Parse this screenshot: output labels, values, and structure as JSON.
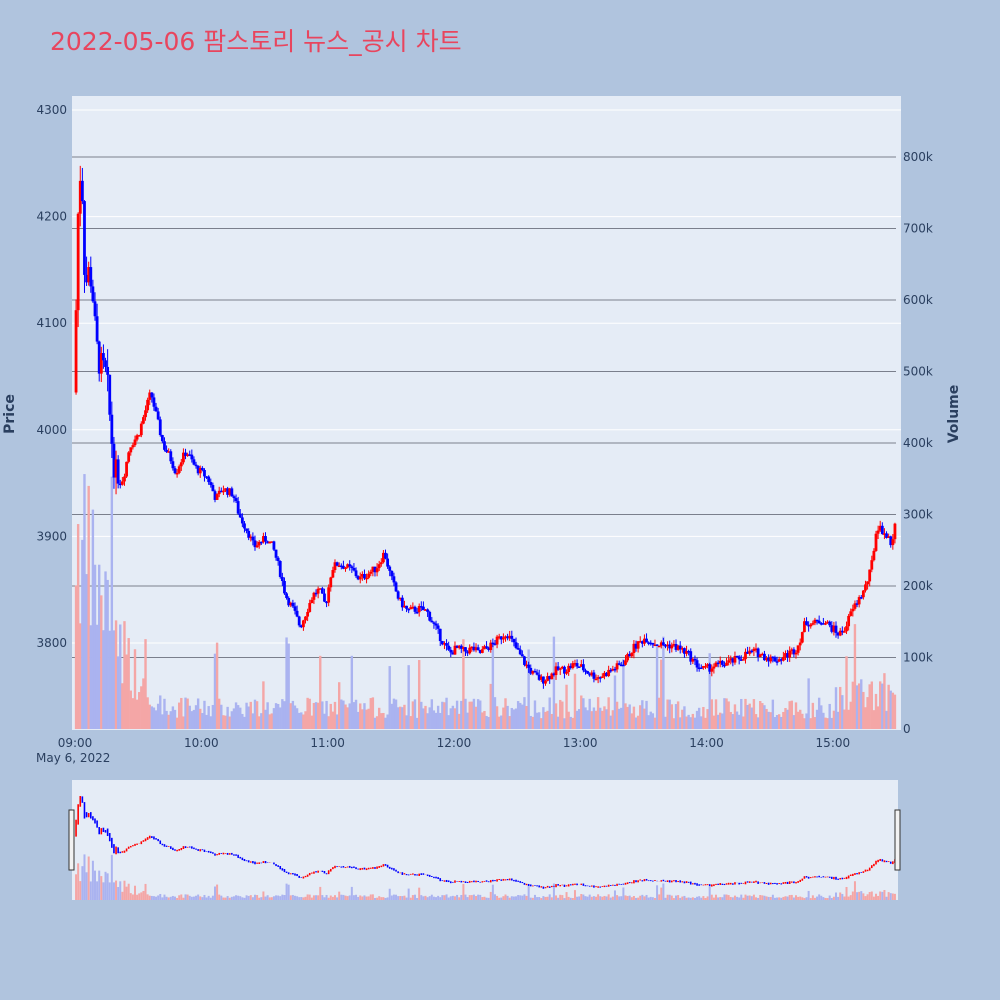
{
  "title": "2022-05-06 팜스토리 뉴스_공시 차트",
  "colors": {
    "page_bg": "#b0c4de",
    "plot_bg": "#e5ecf6",
    "up": "#ff0000",
    "down": "#0000ff",
    "volume_up": "#f4a6a6",
    "volume_down": "#aab3f0",
    "title": "#e8455e",
    "tick": "#2a3f5f",
    "volume_grid": "#7a7f8c"
  },
  "chart_data": {
    "type": "candlestick",
    "title": "2022-05-06 팜스토리 뉴스_공시 차트",
    "ylabel": "Price",
    "y2label": "Volume",
    "ylim": [
      3720,
      4305
    ],
    "y2lim": [
      0,
      860000
    ],
    "price_ticks": [
      "3800",
      "3900",
      "4000",
      "4100",
      "4200",
      "4300"
    ],
    "volume_ticks": [
      "0",
      "100k",
      "200k",
      "300k",
      "400k",
      "500k",
      "600k",
      "700k",
      "800k"
    ],
    "time_ticks": [
      "09:00",
      "10:00",
      "11:00",
      "12:00",
      "13:00",
      "14:00",
      "15:00"
    ],
    "date_label": "May 6, 2022",
    "x_range": [
      "09:00",
      "15:30"
    ],
    "price_path": [
      [
        "09:00",
        4035
      ],
      [
        "09:01",
        4190
      ],
      [
        "09:02",
        4215
      ],
      [
        "09:03",
        4265
      ],
      [
        "09:04",
        4180
      ],
      [
        "09:05",
        4130
      ],
      [
        "09:06",
        4150
      ],
      [
        "09:08",
        4140
      ],
      [
        "09:10",
        4080
      ],
      [
        "09:12",
        4060
      ],
      [
        "09:15",
        4050
      ],
      [
        "09:17",
        4000
      ],
      [
        "09:19",
        3960
      ],
      [
        "09:21",
        3950
      ],
      [
        "09:23",
        3955
      ],
      [
        "09:26",
        3985
      ],
      [
        "09:28",
        3990
      ],
      [
        "09:30",
        3995
      ],
      [
        "09:33",
        4015
      ],
      [
        "09:36",
        4035
      ],
      [
        "09:39",
        4010
      ],
      [
        "09:42",
        3985
      ],
      [
        "09:45",
        3975
      ],
      [
        "09:48",
        3960
      ],
      [
        "09:50",
        3970
      ],
      [
        "09:53",
        3980
      ],
      [
        "09:57",
        3965
      ],
      [
        "10:00",
        3960
      ],
      [
        "10:03",
        3955
      ],
      [
        "10:07",
        3935
      ],
      [
        "10:10",
        3945
      ],
      [
        "10:15",
        3940
      ],
      [
        "10:18",
        3920
      ],
      [
        "10:22",
        3905
      ],
      [
        "10:25",
        3890
      ],
      [
        "10:28",
        3895
      ],
      [
        "10:31",
        3898
      ],
      [
        "10:34",
        3890
      ],
      [
        "10:37",
        3870
      ],
      [
        "10:40",
        3845
      ],
      [
        "10:44",
        3830
      ],
      [
        "10:47",
        3815
      ],
      [
        "10:50",
        3830
      ],
      [
        "10:53",
        3845
      ],
      [
        "10:56",
        3850
      ],
      [
        "10:59",
        3835
      ],
      [
        "11:02",
        3870
      ],
      [
        "11:05",
        3875
      ],
      [
        "11:08",
        3872
      ],
      [
        "11:12",
        3868
      ],
      [
        "11:15",
        3860
      ],
      [
        "11:19",
        3865
      ],
      [
        "11:23",
        3870
      ],
      [
        "11:27",
        3885
      ],
      [
        "11:30",
        3862
      ],
      [
        "11:34",
        3840
      ],
      [
        "11:38",
        3830
      ],
      [
        "11:43",
        3832
      ],
      [
        "11:47",
        3830
      ],
      [
        "11:51",
        3815
      ],
      [
        "11:55",
        3800
      ],
      [
        "11:58",
        3790
      ],
      [
        "12:01",
        3795
      ],
      [
        "12:05",
        3792
      ],
      [
        "12:09",
        3795
      ],
      [
        "12:12",
        3790
      ],
      [
        "12:15",
        3795
      ],
      [
        "12:18",
        3798
      ],
      [
        "12:22",
        3805
      ],
      [
        "12:25",
        3810
      ],
      [
        "12:28",
        3800
      ],
      [
        "12:31",
        3790
      ],
      [
        "12:34",
        3780
      ],
      [
        "12:38",
        3770
      ],
      [
        "12:42",
        3765
      ],
      [
        "12:46",
        3770
      ],
      [
        "12:49",
        3775
      ],
      [
        "12:53",
        3775
      ],
      [
        "12:57",
        3780
      ],
      [
        "13:00",
        3778
      ],
      [
        "13:04",
        3772
      ],
      [
        "13:08",
        3768
      ],
      [
        "13:11",
        3770
      ],
      [
        "13:15",
        3775
      ],
      [
        "13:18",
        3778
      ],
      [
        "13:22",
        3785
      ],
      [
        "13:25",
        3795
      ],
      [
        "13:28",
        3800
      ],
      [
        "13:31",
        3805
      ],
      [
        "13:35",
        3800
      ],
      [
        "13:39",
        3798
      ],
      [
        "13:43",
        3798
      ],
      [
        "13:47",
        3795
      ],
      [
        "13:51",
        3790
      ],
      [
        "13:55",
        3780
      ],
      [
        "13:59",
        3775
      ],
      [
        "14:03",
        3778
      ],
      [
        "14:07",
        3780
      ],
      [
        "14:11",
        3782
      ],
      [
        "14:15",
        3785
      ],
      [
        "14:19",
        3790
      ],
      [
        "14:23",
        3792
      ],
      [
        "14:27",
        3788
      ],
      [
        "14:31",
        3785
      ],
      [
        "14:35",
        3785
      ],
      [
        "14:39",
        3790
      ],
      [
        "14:43",
        3795
      ],
      [
        "14:47",
        3820
      ],
      [
        "14:51",
        3818
      ],
      [
        "14:55",
        3822
      ],
      [
        "14:59",
        3815
      ],
      [
        "15:03",
        3808
      ],
      [
        "15:06",
        3815
      ],
      [
        "15:09",
        3830
      ],
      [
        "15:12",
        3840
      ],
      [
        "15:15",
        3850
      ],
      [
        "15:18",
        3868
      ],
      [
        "15:21",
        3910
      ],
      [
        "15:24",
        3905
      ],
      [
        "15:27",
        3895
      ],
      [
        "15:29",
        3895
      ],
      [
        "15:30",
        3935
      ]
    ]
  }
}
